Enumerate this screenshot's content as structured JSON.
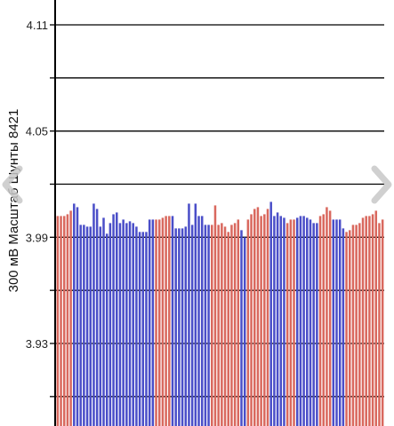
{
  "screen": {
    "nav_left_icon": "chevron-left-icon",
    "nav_right_icon": "chevron-right-icon"
  },
  "chart_data": {
    "type": "bar",
    "ylabel": "300 мВ Масштаб   Шунты 8421",
    "yticks": [
      3.93,
      3.99,
      4.05,
      4.11
    ],
    "ylim": [
      3.87,
      4.13
    ],
    "grid": true,
    "baseline": 4.0,
    "colors": {
      "red": "#d9685e",
      "blue": "#4a4ec8",
      "grid": "#000000"
    },
    "values": [
      4.002,
      4.002,
      4.002,
      4.003,
      4.005,
      4.009,
      4.007,
      3.997,
      3.997,
      3.996,
      3.996,
      4.009,
      4.006,
      3.996,
      4.001,
      3.992,
      3.998,
      4.003,
      4.004,
      3.998,
      4.0,
      3.998,
      3.999,
      3.998,
      3.996,
      3.993,
      3.993,
      3.993,
      4.0,
      4.0,
      4.0,
      4.0,
      4.001,
      4.002,
      4.002,
      4.002,
      3.995,
      3.995,
      3.995,
      3.996,
      4.009,
      3.997,
      4.009,
      4.002,
      4.002,
      3.997,
      3.997,
      3.997,
      4.008,
      3.997,
      3.998,
      3.996,
      3.993,
      3.997,
      3.998,
      4.0,
      3.994,
      3.99,
      4.0,
      4.003,
      4.006,
      4.007,
      4.002,
      4.003,
      4.006,
      4.01,
      4.002,
      4.004,
      4.002,
      4.001,
      3.998,
      4.0,
      4.0,
      4.001,
      4.002,
      4.002,
      4.001,
      4.0,
      3.998,
      3.998,
      4.002,
      4.003,
      4.007,
      4.005,
      4.0,
      4.0,
      4.0,
      3.995,
      3.993,
      3.994,
      3.997,
      3.997,
      3.998,
      4.001,
      4.002,
      4.002,
      4.003,
      4.005,
      3.998,
      4.0
    ],
    "bar_colors": [
      "red",
      "red",
      "red",
      "red",
      "red",
      "blue",
      "blue",
      "blue",
      "blue",
      "blue",
      "blue",
      "blue",
      "blue",
      "blue",
      "blue",
      "blue",
      "blue",
      "blue",
      "blue",
      "blue",
      "blue",
      "blue",
      "blue",
      "blue",
      "blue",
      "blue",
      "blue",
      "blue",
      "blue",
      "blue",
      "red",
      "red",
      "red",
      "red",
      "red",
      "blue",
      "blue",
      "blue",
      "blue",
      "blue",
      "blue",
      "blue",
      "blue",
      "blue",
      "blue",
      "blue",
      "blue",
      "red",
      "red",
      "red",
      "red",
      "red",
      "red",
      "red",
      "red",
      "red",
      "blue",
      "blue",
      "red",
      "red",
      "red",
      "red",
      "red",
      "red",
      "red",
      "blue",
      "blue",
      "blue",
      "blue",
      "blue",
      "red",
      "red",
      "red",
      "blue",
      "blue",
      "blue",
      "blue",
      "blue",
      "blue",
      "blue",
      "red",
      "red",
      "red",
      "red",
      "blue",
      "blue",
      "blue",
      "blue",
      "red",
      "red",
      "red",
      "red",
      "red",
      "red",
      "red",
      "red",
      "red",
      "red",
      "red",
      "red"
    ]
  }
}
